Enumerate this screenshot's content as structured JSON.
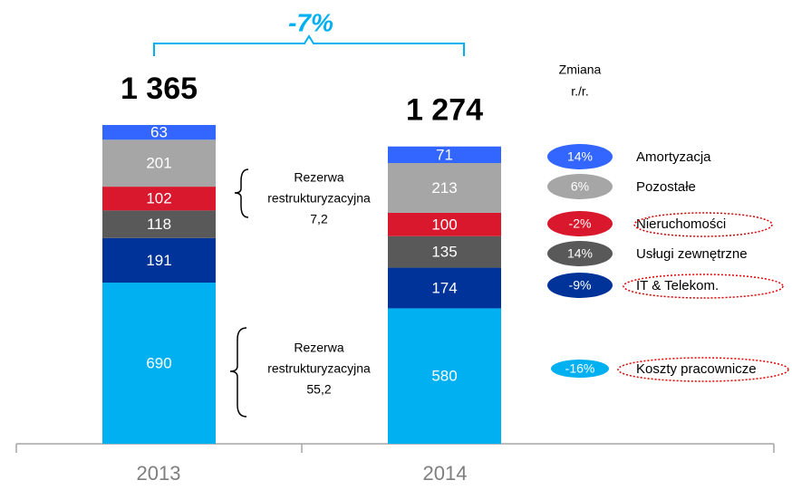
{
  "chart_data": {
    "type": "stacked-bar",
    "categories": [
      "2013",
      "2014"
    ],
    "totals": [
      {
        "value": 1365,
        "label": "1 365"
      },
      {
        "value": 1274,
        "label": "1 274"
      }
    ],
    "change_annotation": "-7%",
    "change_header": [
      "Zmiana",
      "r./r."
    ],
    "series": [
      {
        "name": "Koszty pracownicze",
        "color": "#00b0f0",
        "values": [
          690,
          580
        ],
        "change": "-16%",
        "highlight": true
      },
      {
        "name": "IT & Telekom.",
        "color": "#003399",
        "values": [
          191,
          174
        ],
        "change": "-9%",
        "highlight": true
      },
      {
        "name": "Usługi zewnętrzne",
        "color": "#595959",
        "values": [
          118,
          135
        ],
        "change": "14%",
        "highlight": false
      },
      {
        "name": "Nieruchomości",
        "color": "#d9182d",
        "values": [
          102,
          100
        ],
        "change": "-2%",
        "highlight": true
      },
      {
        "name": "Pozostałe",
        "color": "#a6a6a6",
        "values": [
          201,
          213
        ],
        "change": "6%",
        "highlight": false
      },
      {
        "name": "Amortyzacja",
        "color": "#3366ff",
        "values": [
          63,
          71
        ],
        "change": "14%",
        "highlight": false
      }
    ],
    "annotations": [
      {
        "lines": [
          "Rezerwa",
          "restrukturyzacyjna",
          "7,2"
        ]
      },
      {
        "lines": [
          "Rezerwa",
          "restrukturyzacyjna",
          "55,2"
        ]
      }
    ]
  }
}
